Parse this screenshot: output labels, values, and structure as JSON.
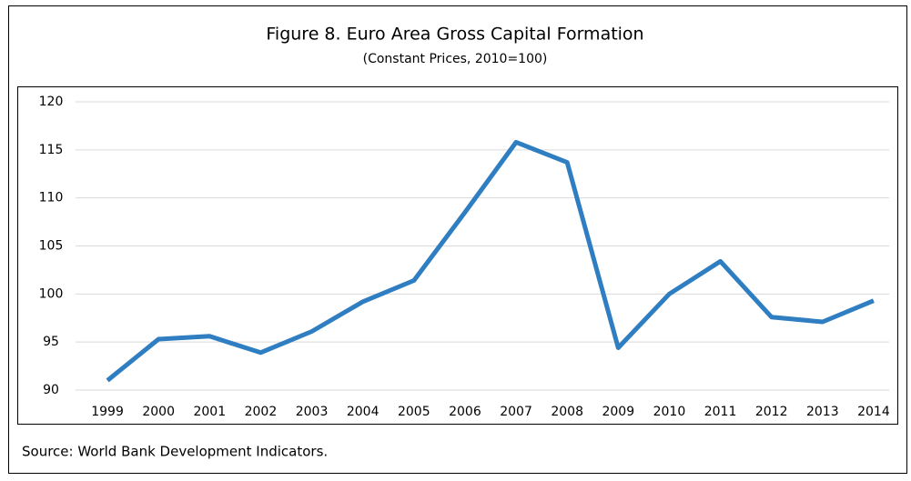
{
  "chart_data": {
    "type": "line",
    "title": "Figure 8. Euro Area Gross Capital Formation",
    "subtitle": "(Constant Prices, 2010=100)",
    "source": "Source: World Bank Development Indicators.",
    "categories": [
      "1999",
      "2000",
      "2001",
      "2002",
      "2003",
      "2004",
      "2005",
      "2006",
      "2007",
      "2008",
      "2009",
      "2010",
      "2011",
      "2012",
      "2013",
      "2014"
    ],
    "values": [
      91.0,
      95.3,
      95.6,
      93.9,
      96.1,
      99.2,
      101.4,
      108.5,
      115.8,
      113.7,
      94.4,
      100.0,
      103.4,
      97.6,
      97.1,
      99.3
    ],
    "color": "#2e7ec1",
    "ylim": [
      90,
      120
    ],
    "yticks": [
      90,
      95,
      100,
      105,
      110,
      115,
      120
    ],
    "grid": true
  }
}
